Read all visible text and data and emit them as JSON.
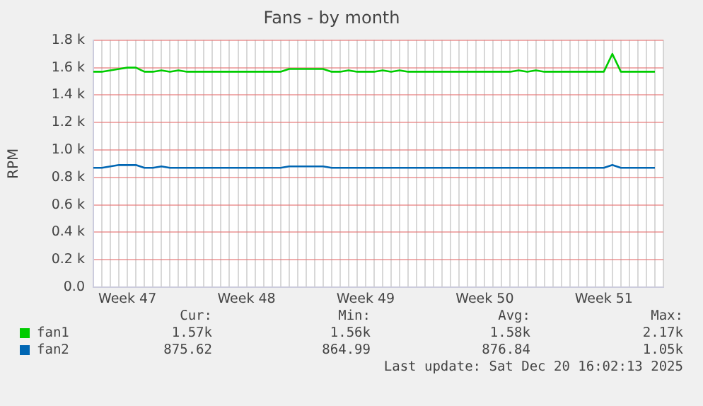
{
  "chart_data": {
    "type": "line",
    "title": "Fans - by month",
    "ylabel": "RPM",
    "categories": [
      null,
      null,
      null,
      null,
      "Week 47",
      null,
      null,
      null,
      null,
      null,
      null,
      null,
      null,
      null,
      null,
      null,
      null,
      null,
      "Week 48",
      null,
      null,
      null,
      null,
      null,
      null,
      null,
      null,
      null,
      null,
      null,
      null,
      null,
      "Week 49",
      null,
      null,
      null,
      null,
      null,
      null,
      null,
      null,
      null,
      null,
      null,
      null,
      null,
      "Week 50",
      null,
      null,
      null,
      null,
      null,
      null,
      null,
      null,
      null,
      null,
      null,
      null,
      null,
      "Week 51",
      null,
      null,
      null,
      null,
      null,
      null,
      null
    ],
    "ylim": [
      0,
      1800
    ],
    "yticks": [
      {
        "value": 0,
        "label": "0.0"
      },
      {
        "value": 200,
        "label": "0.2 k"
      },
      {
        "value": 400,
        "label": "0.4 k"
      },
      {
        "value": 600,
        "label": "0.6 k"
      },
      {
        "value": 800,
        "label": "0.8 k"
      },
      {
        "value": 1000,
        "label": "1.0 k"
      },
      {
        "value": 1200,
        "label": "1.2 k"
      },
      {
        "value": 1400,
        "label": "1.4 k"
      },
      {
        "value": 1600,
        "label": "1.6 k"
      },
      {
        "value": 1800,
        "label": "1.8 k"
      }
    ],
    "grid": true,
    "legend": "bottom",
    "series": [
      {
        "name": "fan1",
        "color": "#00cc00",
        "values": [
          1570,
          1570,
          1580,
          1590,
          1600,
          1600,
          1570,
          1570,
          1580,
          1570,
          1580,
          1570,
          1570,
          1570,
          1570,
          1570,
          1570,
          1570,
          1570,
          1570,
          1570,
          1570,
          1570,
          1590,
          1590,
          1590,
          1590,
          1590,
          1570,
          1570,
          1580,
          1570,
          1570,
          1570,
          1580,
          1570,
          1580,
          1570,
          1570,
          1570,
          1570,
          1570,
          1570,
          1570,
          1570,
          1570,
          1570,
          1570,
          1570,
          1570,
          1580,
          1570,
          1580,
          1570,
          1570,
          1570,
          1570,
          1570,
          1570,
          1570,
          1570,
          1700,
          1570,
          1570,
          1570,
          1570,
          1570,
          null
        ]
      },
      {
        "name": "fan2",
        "color": "#0066b3",
        "values": [
          870,
          870,
          880,
          890,
          890,
          890,
          870,
          870,
          880,
          870,
          870,
          870,
          870,
          870,
          870,
          870,
          870,
          870,
          870,
          870,
          870,
          870,
          870,
          880,
          880,
          880,
          880,
          880,
          870,
          870,
          870,
          870,
          870,
          870,
          870,
          870,
          870,
          870,
          870,
          870,
          870,
          870,
          870,
          870,
          870,
          870,
          870,
          870,
          870,
          870,
          870,
          870,
          870,
          870,
          870,
          870,
          870,
          870,
          870,
          870,
          870,
          890,
          870,
          870,
          870,
          870,
          870,
          null
        ]
      }
    ],
    "annotations": [
      "Cur:",
      "Min:",
      "Avg:",
      "Max:",
      "1.57k",
      "1.56k",
      "1.58k",
      "2.17k",
      "875.62",
      "864.99",
      "876.84",
      "1.05k",
      "Last update: Sat Dec 20 16:02:13 2025"
    ]
  }
}
